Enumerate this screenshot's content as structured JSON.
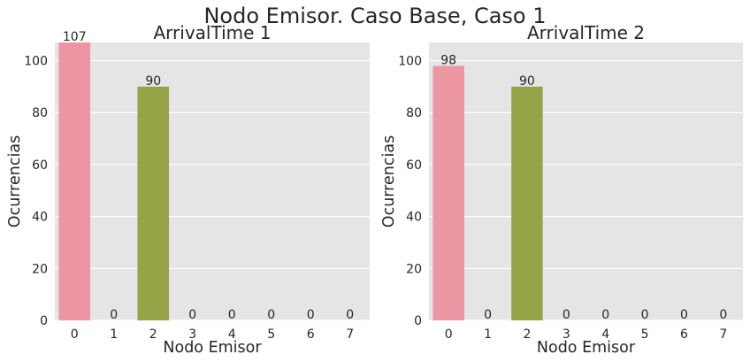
{
  "suptitle": "Nodo Emisor. Caso Base, Caso 1",
  "colors": {
    "plot_background": "#e5e5e5",
    "grid": "#ffffff",
    "text": "#262626",
    "bar_palette": [
      "#ec96a4",
      "#e59c74",
      "#97a347",
      "#7fae5b",
      "#52aeaa",
      "#5ca8d0",
      "#a89bd8",
      "#e590c8"
    ]
  },
  "chart_data": [
    {
      "type": "bar",
      "title": "ArrivalTime 1",
      "xlabel": "Nodo Emisor",
      "ylabel": "Ocurrencias",
      "categories": [
        "0",
        "1",
        "2",
        "3",
        "4",
        "5",
        "6",
        "7"
      ],
      "values": [
        107,
        0,
        90,
        0,
        0,
        0,
        0,
        0
      ],
      "data_labels": [
        "107",
        "0",
        "90",
        "0",
        "0",
        "0",
        "0",
        "0"
      ],
      "ylim": [
        0,
        107
      ],
      "yticks": [
        0,
        20,
        40,
        60,
        80,
        100
      ],
      "grid": "horizontal"
    },
    {
      "type": "bar",
      "title": "ArrivalTime 2",
      "xlabel": "Nodo Emisor",
      "ylabel": "Ocurrencias",
      "categories": [
        "0",
        "1",
        "2",
        "3",
        "4",
        "5",
        "6",
        "7"
      ],
      "values": [
        98,
        0,
        90,
        0,
        0,
        0,
        0,
        0
      ],
      "data_labels": [
        "98",
        "0",
        "90",
        "0",
        "0",
        "0",
        "0",
        "0"
      ],
      "ylim": [
        0,
        107
      ],
      "yticks": [
        0,
        20,
        40,
        60,
        80,
        100
      ],
      "grid": "horizontal"
    }
  ]
}
